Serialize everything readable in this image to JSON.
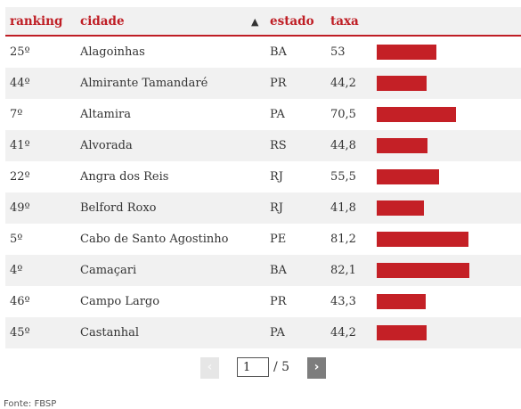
{
  "header": {
    "ranking": "ranking",
    "cidade": "cidade",
    "sort_indicator": "▲",
    "estado": "estado",
    "taxa": "taxa"
  },
  "rows": [
    {
      "ranking": "25º",
      "cidade": "Alagoinhas",
      "estado": "BA",
      "taxa": "53",
      "value": 53.0
    },
    {
      "ranking": "44º",
      "cidade": "Almirante Tamandaré",
      "estado": "PR",
      "taxa": "44,2",
      "value": 44.2
    },
    {
      "ranking": "7º",
      "cidade": "Altamira",
      "estado": "PA",
      "taxa": "70,5",
      "value": 70.5
    },
    {
      "ranking": "41º",
      "cidade": "Alvorada",
      "estado": "RS",
      "taxa": "44,8",
      "value": 44.8
    },
    {
      "ranking": "22º",
      "cidade": "Angra dos Reis",
      "estado": "RJ",
      "taxa": "55,5",
      "value": 55.5
    },
    {
      "ranking": "49º",
      "cidade": "Belford Roxo",
      "estado": "RJ",
      "taxa": "41,8",
      "value": 41.8
    },
    {
      "ranking": "5º",
      "cidade": "Cabo de Santo Agostinho",
      "estado": "PE",
      "taxa": "81,2",
      "value": 81.2
    },
    {
      "ranking": "4º",
      "cidade": "Camaçari",
      "estado": "BA",
      "taxa": "82,1",
      "value": 82.1
    },
    {
      "ranking": "46º",
      "cidade": "Campo Largo",
      "estado": "PR",
      "taxa": "43,3",
      "value": 43.3
    },
    {
      "ranking": "45º",
      "cidade": "Castanhal",
      "estado": "PA",
      "taxa": "44,2",
      "value": 44.2
    }
  ],
  "pagination": {
    "prev": "‹",
    "next": "›",
    "current_page": "1",
    "total": "/ 5"
  },
  "source": "Fonte: FBSP",
  "colors": {
    "accent": "#bf1e25",
    "bar": "#c42026",
    "stripe": "#f1f1f1"
  }
}
